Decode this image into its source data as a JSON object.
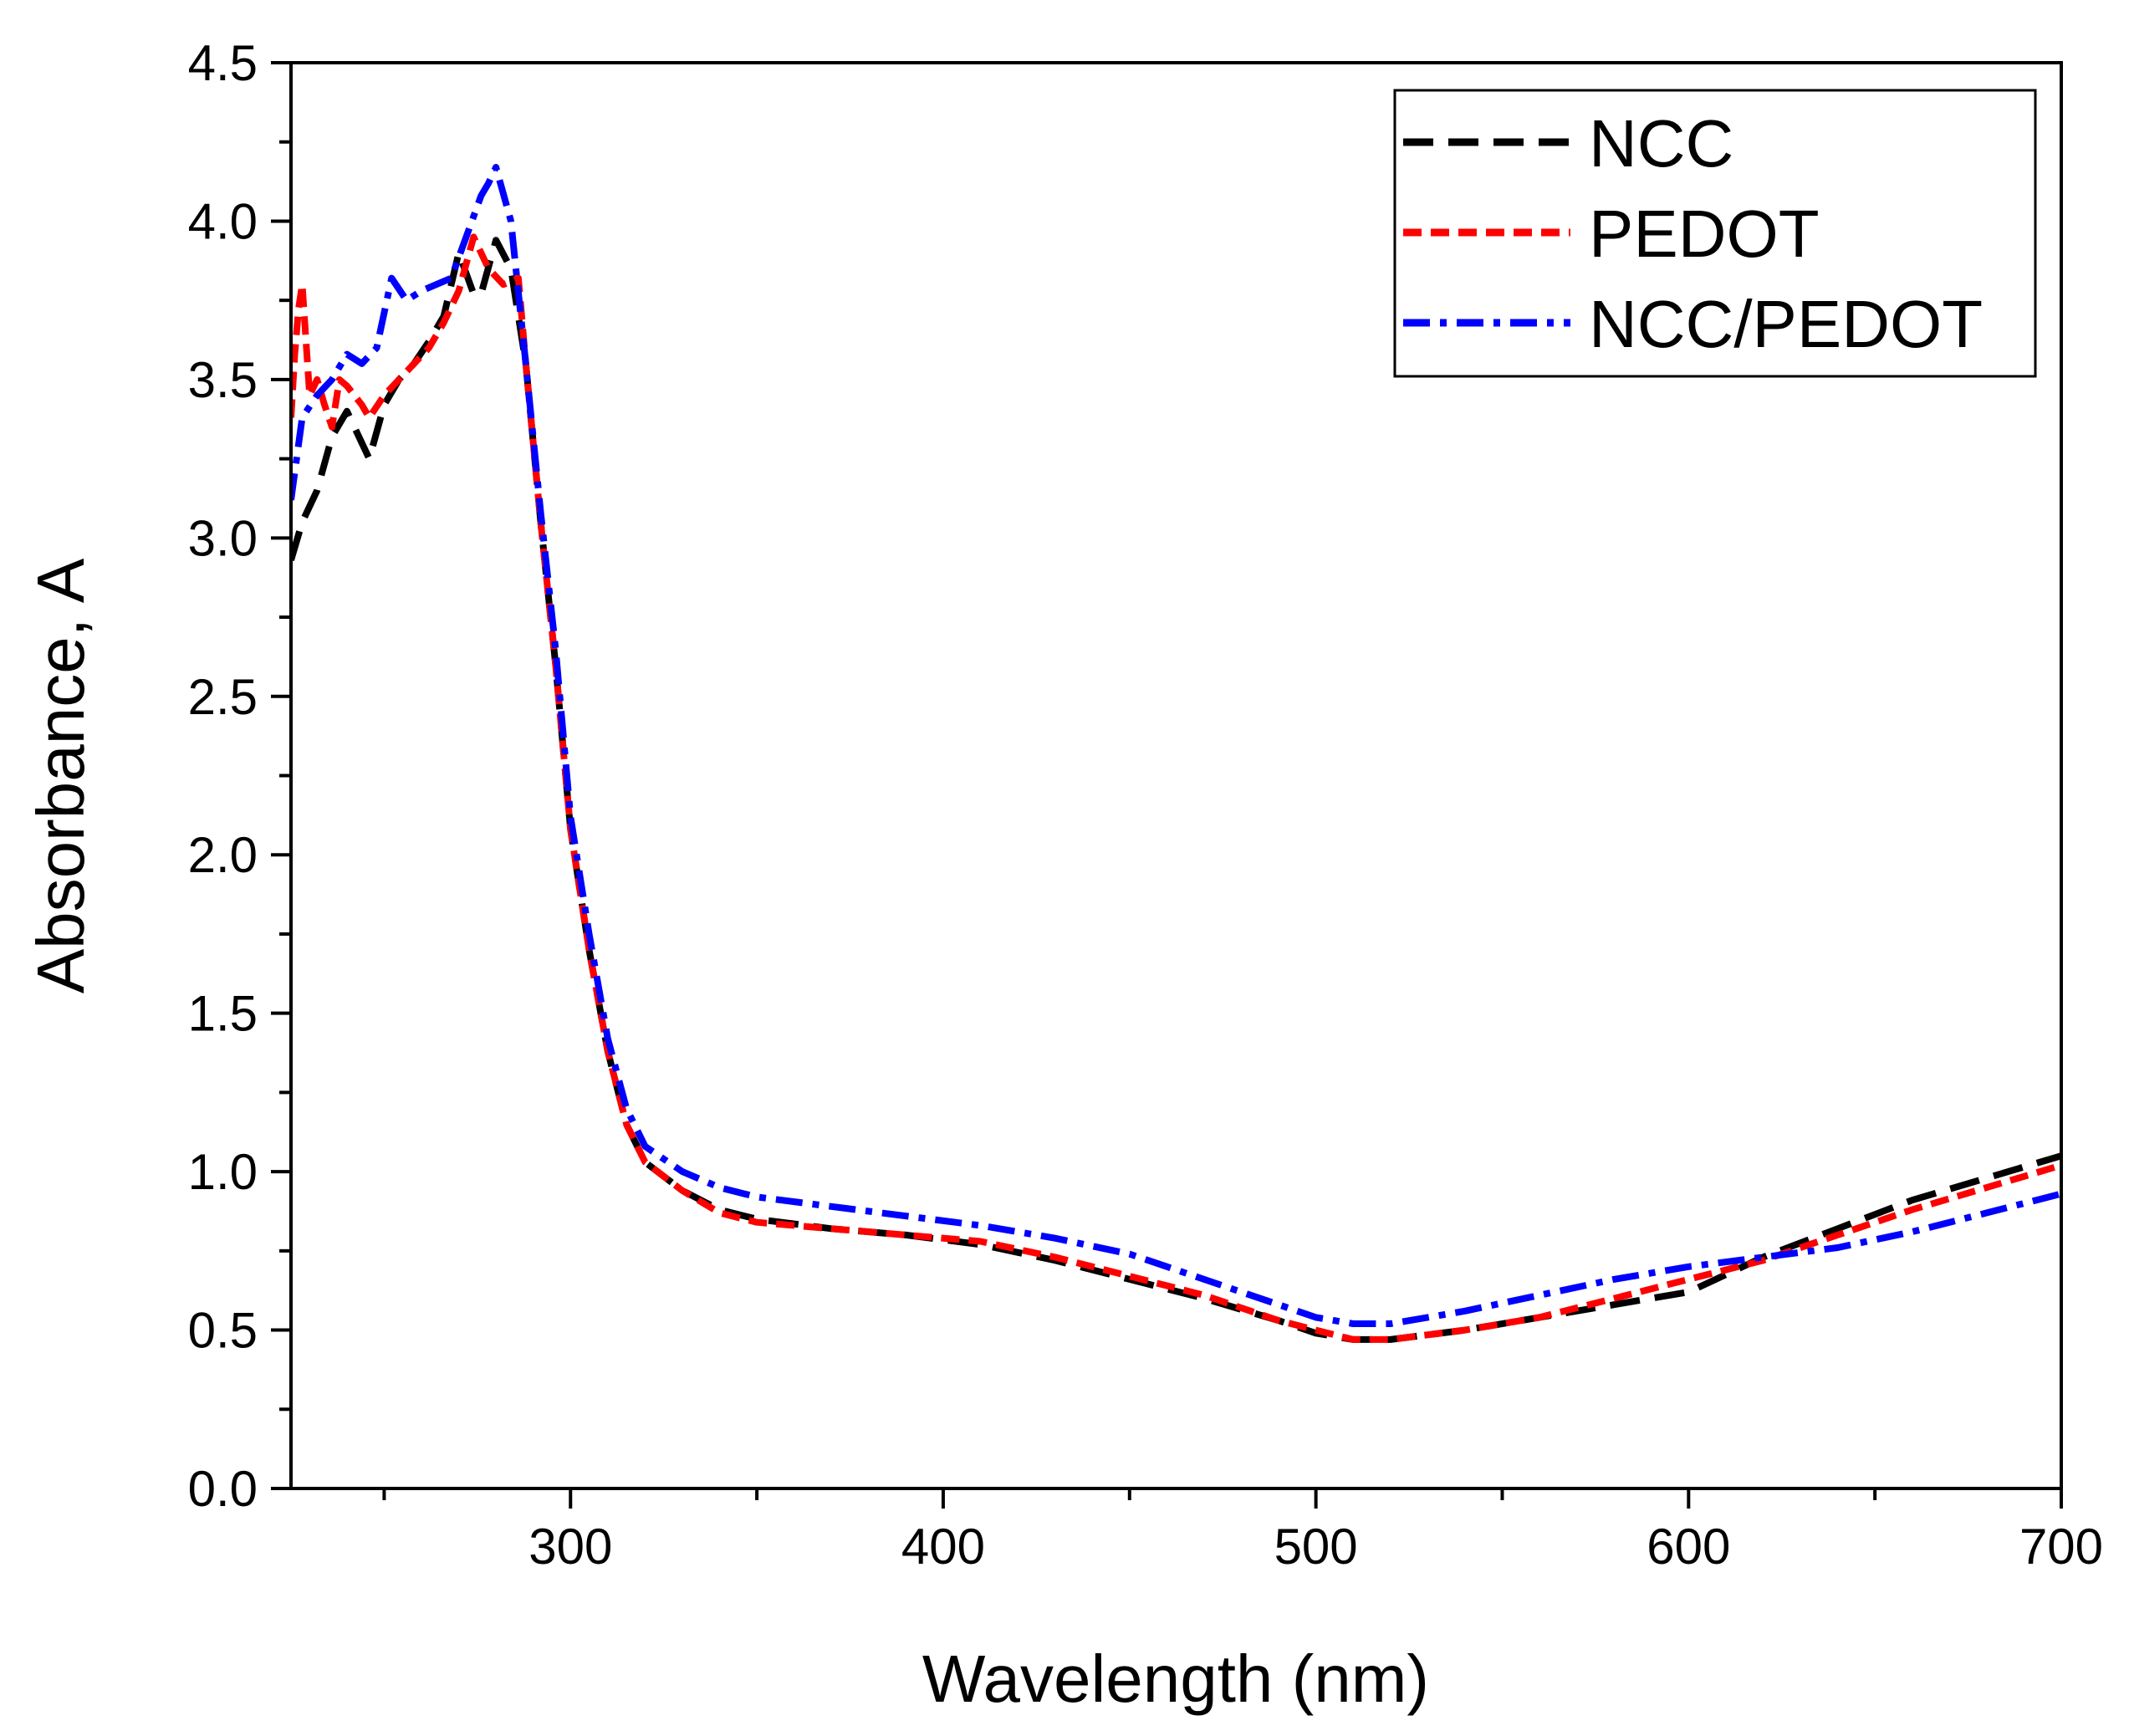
{
  "chart_data": {
    "type": "line",
    "title": "",
    "xlabel": "Wavelength (nm)",
    "ylabel": "Absorbance, A",
    "xlim": [
      225,
      700
    ],
    "ylim": [
      0,
      4.5
    ],
    "xticks": [
      300,
      400,
      500,
      600,
      700
    ],
    "xtick_labels": [
      "300",
      "400",
      "500",
      "600",
      "700"
    ],
    "xminor_step": 50,
    "yticks": [
      0,
      0.5,
      1.0,
      1.5,
      2.0,
      2.5,
      3.0,
      3.5,
      4.0,
      4.5
    ],
    "ytick_labels": [
      "0.0",
      "0.5",
      "1.0",
      "1.5",
      "2.0",
      "2.5",
      "3.0",
      "3.5",
      "4.0",
      "4.5"
    ],
    "yminor_step": 0.25,
    "grid": false,
    "legend_position": "top-right",
    "series": [
      {
        "name": "NCC",
        "color": "#000000",
        "dash": "long-dash",
        "x": [
          225,
          228,
          232,
          236,
          240,
          244,
          246,
          250,
          254,
          258,
          262,
          266,
          270,
          274,
          276,
          280,
          284,
          288,
          292,
          296,
          300,
          305,
          310,
          315,
          320,
          330,
          340,
          350,
          370,
          390,
          410,
          430,
          450,
          470,
          490,
          500,
          510,
          520,
          540,
          560,
          580,
          600,
          620,
          640,
          660,
          680,
          700
        ],
        "y": [
          2.93,
          3.05,
          3.15,
          3.32,
          3.4,
          3.3,
          3.25,
          3.42,
          3.5,
          3.55,
          3.62,
          3.7,
          3.9,
          3.77,
          3.77,
          3.94,
          3.85,
          3.55,
          3.05,
          2.6,
          2.08,
          1.7,
          1.38,
          1.15,
          1.03,
          0.94,
          0.88,
          0.85,
          0.82,
          0.8,
          0.77,
          0.72,
          0.66,
          0.6,
          0.53,
          0.49,
          0.47,
          0.47,
          0.5,
          0.54,
          0.58,
          0.62,
          0.73,
          0.82,
          0.91,
          0.98,
          1.05
        ]
      },
      {
        "name": "PEDOT",
        "color": "#ff0000",
        "dash": "short-dash",
        "x": [
          225,
          226,
          227,
          228,
          230,
          232,
          234,
          236,
          238,
          240,
          242,
          244,
          246,
          250,
          254,
          258,
          262,
          266,
          270,
          274,
          278,
          282,
          286,
          288,
          292,
          296,
          300,
          305,
          310,
          315,
          320,
          330,
          340,
          350,
          370,
          390,
          410,
          430,
          450,
          470,
          490,
          500,
          510,
          520,
          540,
          560,
          580,
          600,
          620,
          640,
          660,
          680,
          700
        ],
        "y": [
          3.38,
          3.58,
          3.72,
          3.8,
          3.45,
          3.5,
          3.42,
          3.35,
          3.5,
          3.48,
          3.45,
          3.42,
          3.38,
          3.45,
          3.5,
          3.55,
          3.6,
          3.68,
          3.78,
          3.95,
          3.85,
          3.8,
          3.82,
          3.55,
          3.05,
          2.6,
          2.08,
          1.7,
          1.38,
          1.15,
          1.03,
          0.94,
          0.87,
          0.84,
          0.82,
          0.8,
          0.78,
          0.73,
          0.67,
          0.61,
          0.53,
          0.5,
          0.47,
          0.47,
          0.5,
          0.54,
          0.6,
          0.66,
          0.72,
          0.8,
          0.88,
          0.95,
          1.02
        ]
      },
      {
        "name": "NCC/PEDOT",
        "color": "#0000ff",
        "dash": "dash-dot",
        "x": [
          225,
          228,
          232,
          236,
          240,
          244,
          248,
          252,
          256,
          260,
          264,
          268,
          272,
          276,
          278,
          280,
          284,
          288,
          292,
          296,
          300,
          305,
          310,
          315,
          320,
          330,
          340,
          350,
          370,
          390,
          410,
          430,
          450,
          470,
          490,
          500,
          510,
          520,
          540,
          560,
          580,
          600,
          620,
          640,
          660,
          680,
          700
        ],
        "y": [
          3.12,
          3.38,
          3.45,
          3.5,
          3.58,
          3.55,
          3.6,
          3.82,
          3.75,
          3.78,
          3.8,
          3.82,
          3.95,
          4.08,
          4.12,
          4.17,
          4.0,
          3.55,
          3.08,
          2.65,
          2.12,
          1.75,
          1.42,
          1.2,
          1.08,
          1.0,
          0.95,
          0.92,
          0.89,
          0.86,
          0.83,
          0.79,
          0.74,
          0.66,
          0.58,
          0.54,
          0.52,
          0.52,
          0.56,
          0.61,
          0.66,
          0.7,
          0.73,
          0.76,
          0.81,
          0.87,
          0.93
        ]
      }
    ]
  }
}
